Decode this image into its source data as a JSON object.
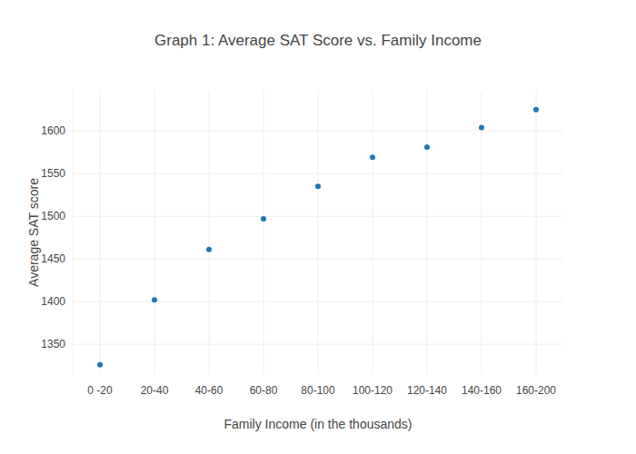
{
  "chart_data": {
    "type": "scatter",
    "title": "Graph 1: Average SAT Score vs. Family Income",
    "x_label": "Family Income (in the thousands)",
    "y_label": "Average SAT score",
    "categories": [
      "0 -20",
      "20-40",
      "40-60",
      "60-80",
      "80-100",
      "100-120",
      "120-140",
      "140-160",
      "160-200"
    ],
    "values": [
      1326,
      1402,
      1461,
      1497,
      1535,
      1569,
      1581,
      1604,
      1625
    ],
    "color": "#1f77b4",
    "marker": "circle",
    "ylim": [
      1315,
      1647
    ],
    "yticks": [
      1350,
      1400,
      1450,
      1500,
      1550,
      1600
    ],
    "grid": true
  }
}
